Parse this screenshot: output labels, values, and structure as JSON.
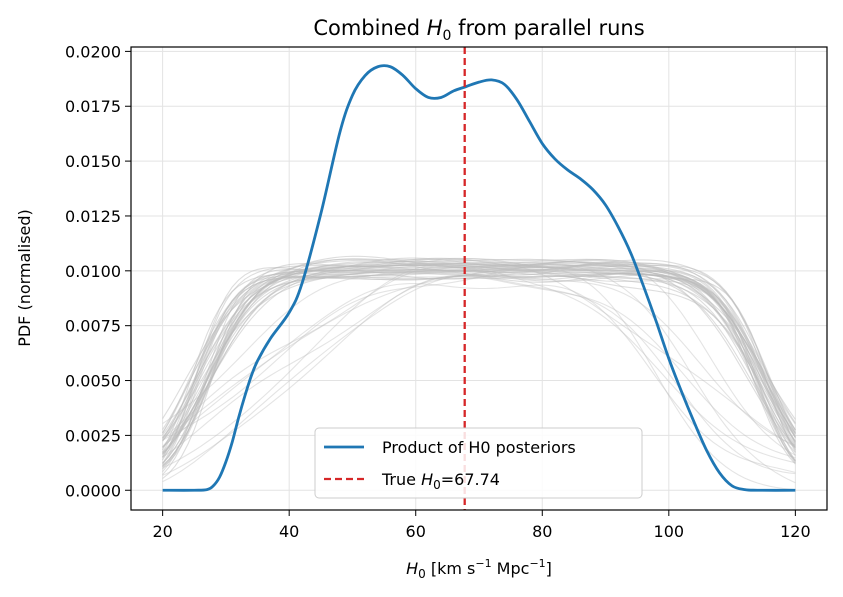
{
  "chart_data": {
    "type": "line",
    "title_prefix": "Combined ",
    "title_symbol": "H",
    "title_sub": "0",
    "title_suffix": " from parallel runs",
    "xlabel_symbol": "H",
    "xlabel_sub": "0",
    "xlabel_unit_a": " [km s",
    "xlabel_exp_a": "−1",
    "xlabel_unit_b": " Mpc",
    "xlabel_exp_b": "−1",
    "xlabel_close": "]",
    "ylabel": "PDF (normalised)",
    "xlim": [
      15,
      125
    ],
    "ylim": [
      -0.0009,
      0.0202
    ],
    "xticks": [
      20,
      40,
      60,
      80,
      100,
      120
    ],
    "yticks": [
      0.0,
      0.0025,
      0.005,
      0.0075,
      0.01,
      0.0125,
      0.015,
      0.0175,
      0.02
    ],
    "ytick_labels": [
      "0.0000",
      "0.0025",
      "0.0050",
      "0.0075",
      "0.0100",
      "0.0125",
      "0.0150",
      "0.0175",
      "0.0200"
    ],
    "grid": true,
    "true_h0": 67.74,
    "legend_position": "bottom-center",
    "product_series": {
      "name": "Product of H0 posteriors",
      "color": "#1f77b4",
      "x": [
        20,
        25,
        27,
        28,
        29,
        30,
        31,
        32,
        33,
        34,
        35,
        37,
        40,
        42,
        45,
        48,
        50,
        52,
        54,
        56,
        58,
        60,
        62,
        64,
        66,
        68,
        70,
        72,
        74,
        76,
        78,
        80,
        82,
        84,
        86,
        88,
        90,
        92,
        94,
        96,
        98,
        100,
        102,
        104,
        106,
        108,
        110,
        112,
        114,
        120
      ],
      "y": [
        0.0,
        0.0,
        3e-05,
        0.0002,
        0.0006,
        0.0013,
        0.0022,
        0.0033,
        0.0043,
        0.0052,
        0.0059,
        0.0069,
        0.0081,
        0.0094,
        0.0126,
        0.0163,
        0.018,
        0.0189,
        0.0193,
        0.0193,
        0.0189,
        0.0183,
        0.0179,
        0.0179,
        0.0182,
        0.0184,
        0.0186,
        0.0187,
        0.0185,
        0.0178,
        0.0168,
        0.0158,
        0.0151,
        0.0146,
        0.0142,
        0.0137,
        0.013,
        0.012,
        0.0108,
        0.0093,
        0.0077,
        0.006,
        0.0045,
        0.0031,
        0.0018,
        0.0008,
        0.0002,
        3e-05,
        0.0,
        0.0
      ]
    },
    "true_line": {
      "name_prefix": "True ",
      "symbol": "H",
      "sub": "0",
      "value_text": "=67.74",
      "color": "#d62728"
    },
    "background_runs": {
      "count": 45,
      "color": "#bbbbbb",
      "description_value_range": [
        0.001,
        0.0114
      ]
    }
  }
}
